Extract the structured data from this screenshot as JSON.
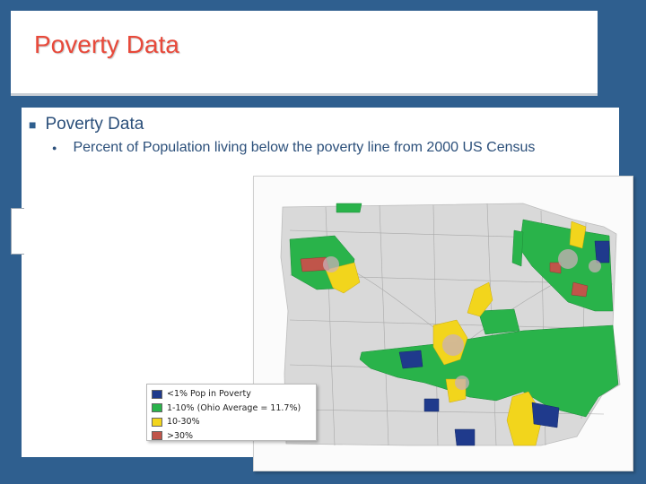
{
  "slide": {
    "title": "Poverty Data",
    "bullet": "Poverty Data",
    "sub_bullet": "Percent of Population living below the poverty line from 2000 US Census"
  },
  "legend": [
    {
      "label": "<1% Pop in Poverty",
      "color": "#1f3a8c"
    },
    {
      "label": "1-10% (Ohio Average = 11.7%)",
      "color": "#29b34a"
    },
    {
      "label": "10-30%",
      "color": "#f2d51c"
    },
    {
      "label": ">30%",
      "color": "#c0554a"
    }
  ],
  "colors": {
    "background": "#2f5f8f",
    "title": "#e8493a",
    "text": "#2b4f7a",
    "county_base": "#d9d9d9"
  }
}
